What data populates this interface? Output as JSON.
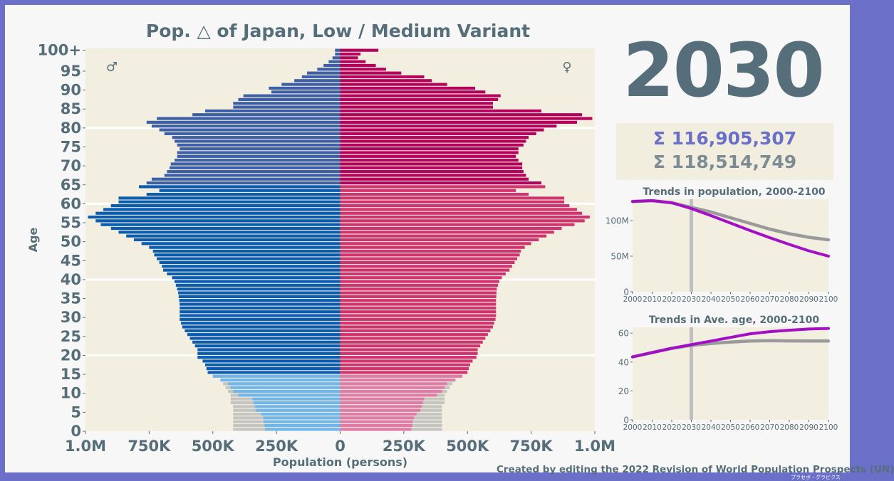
{
  "title": "Pop. △ of Japan, Low / Medium Variant",
  "year": "2030",
  "totals": {
    "low": "Σ 116,905,307",
    "medium": "Σ 118,514,749"
  },
  "credit": "Created by editing the 2022 Revision of World Population Prospects (UN)",
  "brand": "プラセボ・グラビクス",
  "colors": {
    "male_child": "#6fb6ea",
    "male_working": "#0a5cb0",
    "male_elder": "#3d5fa6",
    "female_child": "#e07ba6",
    "female_working": "#d1336e",
    "female_elder": "#b5005c",
    "medium_extra": "#c4c4c0",
    "panel_bg": "#f3efe0",
    "text": "#566e7a",
    "low_line": "#a30fc4",
    "medium_line": "#9a9a9a",
    "frame": "#6b6fc7"
  },
  "chart_data": [
    {
      "type": "bar",
      "subtype": "population-pyramid",
      "title": "Pop. △ of Japan, Low / Medium Variant",
      "xlabel": "Population (persons)",
      "ylabel": "Age",
      "xlim": [
        -1000000,
        1000000
      ],
      "x_ticks": [
        "1.0M",
        "750K",
        "500K",
        "250K",
        "0",
        "250K",
        "500K",
        "750K",
        "1.0M"
      ],
      "y_ticks": [
        "0",
        "5",
        "10",
        "15",
        "20",
        "25",
        "30",
        "35",
        "40",
        "45",
        "50",
        "55",
        "60",
        "65",
        "70",
        "75",
        "80",
        "85",
        "90",
        "95",
        "100+"
      ],
      "legend_symbols": {
        "male": "♂",
        "female": "♀"
      },
      "male_low": [
        295000,
        297000,
        300000,
        302000,
        310000,
        330000,
        335000,
        340000,
        345000,
        400000,
        420000,
        430000,
        440000,
        470000,
        500000,
        520000,
        525000,
        530000,
        540000,
        560000,
        560000,
        560000,
        570000,
        580000,
        590000,
        600000,
        610000,
        620000,
        625000,
        630000,
        630000,
        630000,
        630000,
        630000,
        632000,
        634000,
        636000,
        640000,
        645000,
        650000,
        660000,
        680000,
        695000,
        700000,
        710000,
        720000,
        730000,
        735000,
        750000,
        780000,
        810000,
        840000,
        870000,
        900000,
        940000,
        960000,
        990000,
        960000,
        930000,
        900000,
        870000,
        870000,
        760000,
        710000,
        790000,
        760000,
        740000,
        690000,
        680000,
        670000,
        665000,
        650000,
        640000,
        640000,
        630000,
        640000,
        650000,
        660000,
        690000,
        710000,
        740000,
        760000,
        720000,
        580000,
        530000,
        420000,
        420000,
        400000,
        380000,
        270000,
        280000,
        230000,
        180000,
        150000,
        130000,
        90000,
        65000,
        45000,
        30000,
        20000,
        20000
      ],
      "male_medium": [
        420000,
        420000,
        420000,
        420000,
        420000,
        420000,
        420000,
        430000,
        430000,
        430000,
        440000,
        450000,
        460000,
        470000,
        500000,
        520000,
        525000,
        530000,
        540000,
        560000,
        560000,
        560000,
        570000,
        580000,
        590000,
        600000,
        610000,
        620000,
        625000,
        630000,
        630000,
        630000,
        630000,
        630000,
        632000,
        634000,
        636000,
        640000,
        645000,
        650000,
        660000,
        680000,
        695000,
        700000,
        710000,
        720000,
        730000,
        735000,
        750000,
        780000,
        810000,
        840000,
        870000,
        900000,
        940000,
        960000,
        990000,
        960000,
        930000,
        900000,
        870000,
        870000,
        760000,
        710000,
        790000,
        760000,
        740000,
        690000,
        680000,
        670000,
        665000,
        650000,
        640000,
        640000,
        630000,
        640000,
        650000,
        660000,
        690000,
        710000,
        740000,
        760000,
        720000,
        580000,
        530000,
        420000,
        420000,
        400000,
        380000,
        270000,
        280000,
        230000,
        180000,
        150000,
        130000,
        90000,
        65000,
        45000,
        30000,
        20000,
        20000
      ],
      "female_low": [
        280000,
        283000,
        285000,
        290000,
        300000,
        315000,
        320000,
        325000,
        330000,
        380000,
        400000,
        410000,
        420000,
        450000,
        480000,
        500000,
        505000,
        510000,
        520000,
        535000,
        540000,
        540000,
        550000,
        560000,
        570000,
        580000,
        590000,
        600000,
        605000,
        610000,
        612000,
        612000,
        612000,
        612000,
        612000,
        613000,
        614000,
        615000,
        620000,
        625000,
        635000,
        650000,
        665000,
        675000,
        685000,
        695000,
        705000,
        710000,
        725000,
        750000,
        780000,
        810000,
        840000,
        870000,
        920000,
        960000,
        980000,
        950000,
        930000,
        900000,
        880000,
        880000,
        740000,
        690000,
        805000,
        790000,
        740000,
        730000,
        720000,
        715000,
        715000,
        700000,
        690000,
        700000,
        700000,
        720000,
        730000,
        740000,
        770000,
        800000,
        850000,
        930000,
        990000,
        950000,
        790000,
        600000,
        600000,
        620000,
        630000,
        570000,
        530000,
        420000,
        360000,
        330000,
        240000,
        180000,
        140000,
        100000,
        70000,
        80000,
        150000
      ],
      "female_medium": [
        400000,
        400000,
        400000,
        400000,
        400000,
        400000,
        400000,
        410000,
        410000,
        410000,
        420000,
        430000,
        440000,
        455000,
        480000,
        500000,
        505000,
        510000,
        520000,
        535000,
        540000,
        540000,
        550000,
        560000,
        570000,
        580000,
        590000,
        600000,
        605000,
        610000,
        612000,
        612000,
        612000,
        612000,
        612000,
        613000,
        614000,
        615000,
        620000,
        625000,
        635000,
        650000,
        665000,
        675000,
        685000,
        695000,
        705000,
        710000,
        725000,
        750000,
        780000,
        810000,
        840000,
        870000,
        920000,
        960000,
        980000,
        950000,
        930000,
        900000,
        880000,
        880000,
        740000,
        690000,
        805000,
        790000,
        740000,
        730000,
        720000,
        715000,
        715000,
        700000,
        690000,
        700000,
        700000,
        720000,
        730000,
        740000,
        770000,
        800000,
        850000,
        930000,
        990000,
        950000,
        790000,
        600000,
        600000,
        620000,
        630000,
        570000,
        530000,
        420000,
        360000,
        330000,
        240000,
        180000,
        140000,
        100000,
        70000,
        80000,
        150000
      ]
    },
    {
      "type": "line",
      "title": "Trends in population, 2000-2100",
      "x": [
        2000,
        2010,
        2020,
        2030,
        2040,
        2050,
        2060,
        2070,
        2080,
        2090,
        2100
      ],
      "x_ticks": [
        "2000",
        "2010",
        "2020",
        "2030",
        "2040",
        "2050",
        "2060",
        "2070",
        "2080",
        "2090",
        "2100"
      ],
      "y_ticks": [
        "0",
        "50M",
        "100M"
      ],
      "ylim": [
        0,
        130000000
      ],
      "marker_year": 2030,
      "series": [
        {
          "name": "Low",
          "values": [
            126800000,
            128000000,
            125000000,
            116900000,
            107000000,
            96500000,
            86000000,
            76000000,
            66500000,
            57500000,
            50000000
          ]
        },
        {
          "name": "Medium",
          "values": [
            126800000,
            128000000,
            125000000,
            118500000,
            112000000,
            104000000,
            96000000,
            88000000,
            81500000,
            76500000,
            73000000
          ]
        }
      ]
    },
    {
      "type": "line",
      "title": "Trends in Ave. age, 2000-2100",
      "x": [
        2000,
        2010,
        2020,
        2030,
        2040,
        2050,
        2060,
        2070,
        2080,
        2090,
        2100
      ],
      "x_ticks": [
        "2000",
        "2010",
        "2020",
        "2030",
        "2040",
        "2050",
        "2060",
        "2070",
        "2080",
        "2090",
        "2100"
      ],
      "y_ticks": [
        "0",
        "20",
        "40",
        "60"
      ],
      "ylim": [
        0,
        64
      ],
      "marker_year": 2030,
      "series": [
        {
          "name": "Low",
          "values": [
            43.5,
            46.5,
            49.5,
            52,
            54.5,
            57,
            59.5,
            61,
            62,
            62.8,
            63.2
          ]
        },
        {
          "name": "Medium",
          "values": [
            43.5,
            46.5,
            49.5,
            51.5,
            52.8,
            53.8,
            54.5,
            54.8,
            54.6,
            54.5,
            54.5
          ]
        }
      ]
    }
  ]
}
